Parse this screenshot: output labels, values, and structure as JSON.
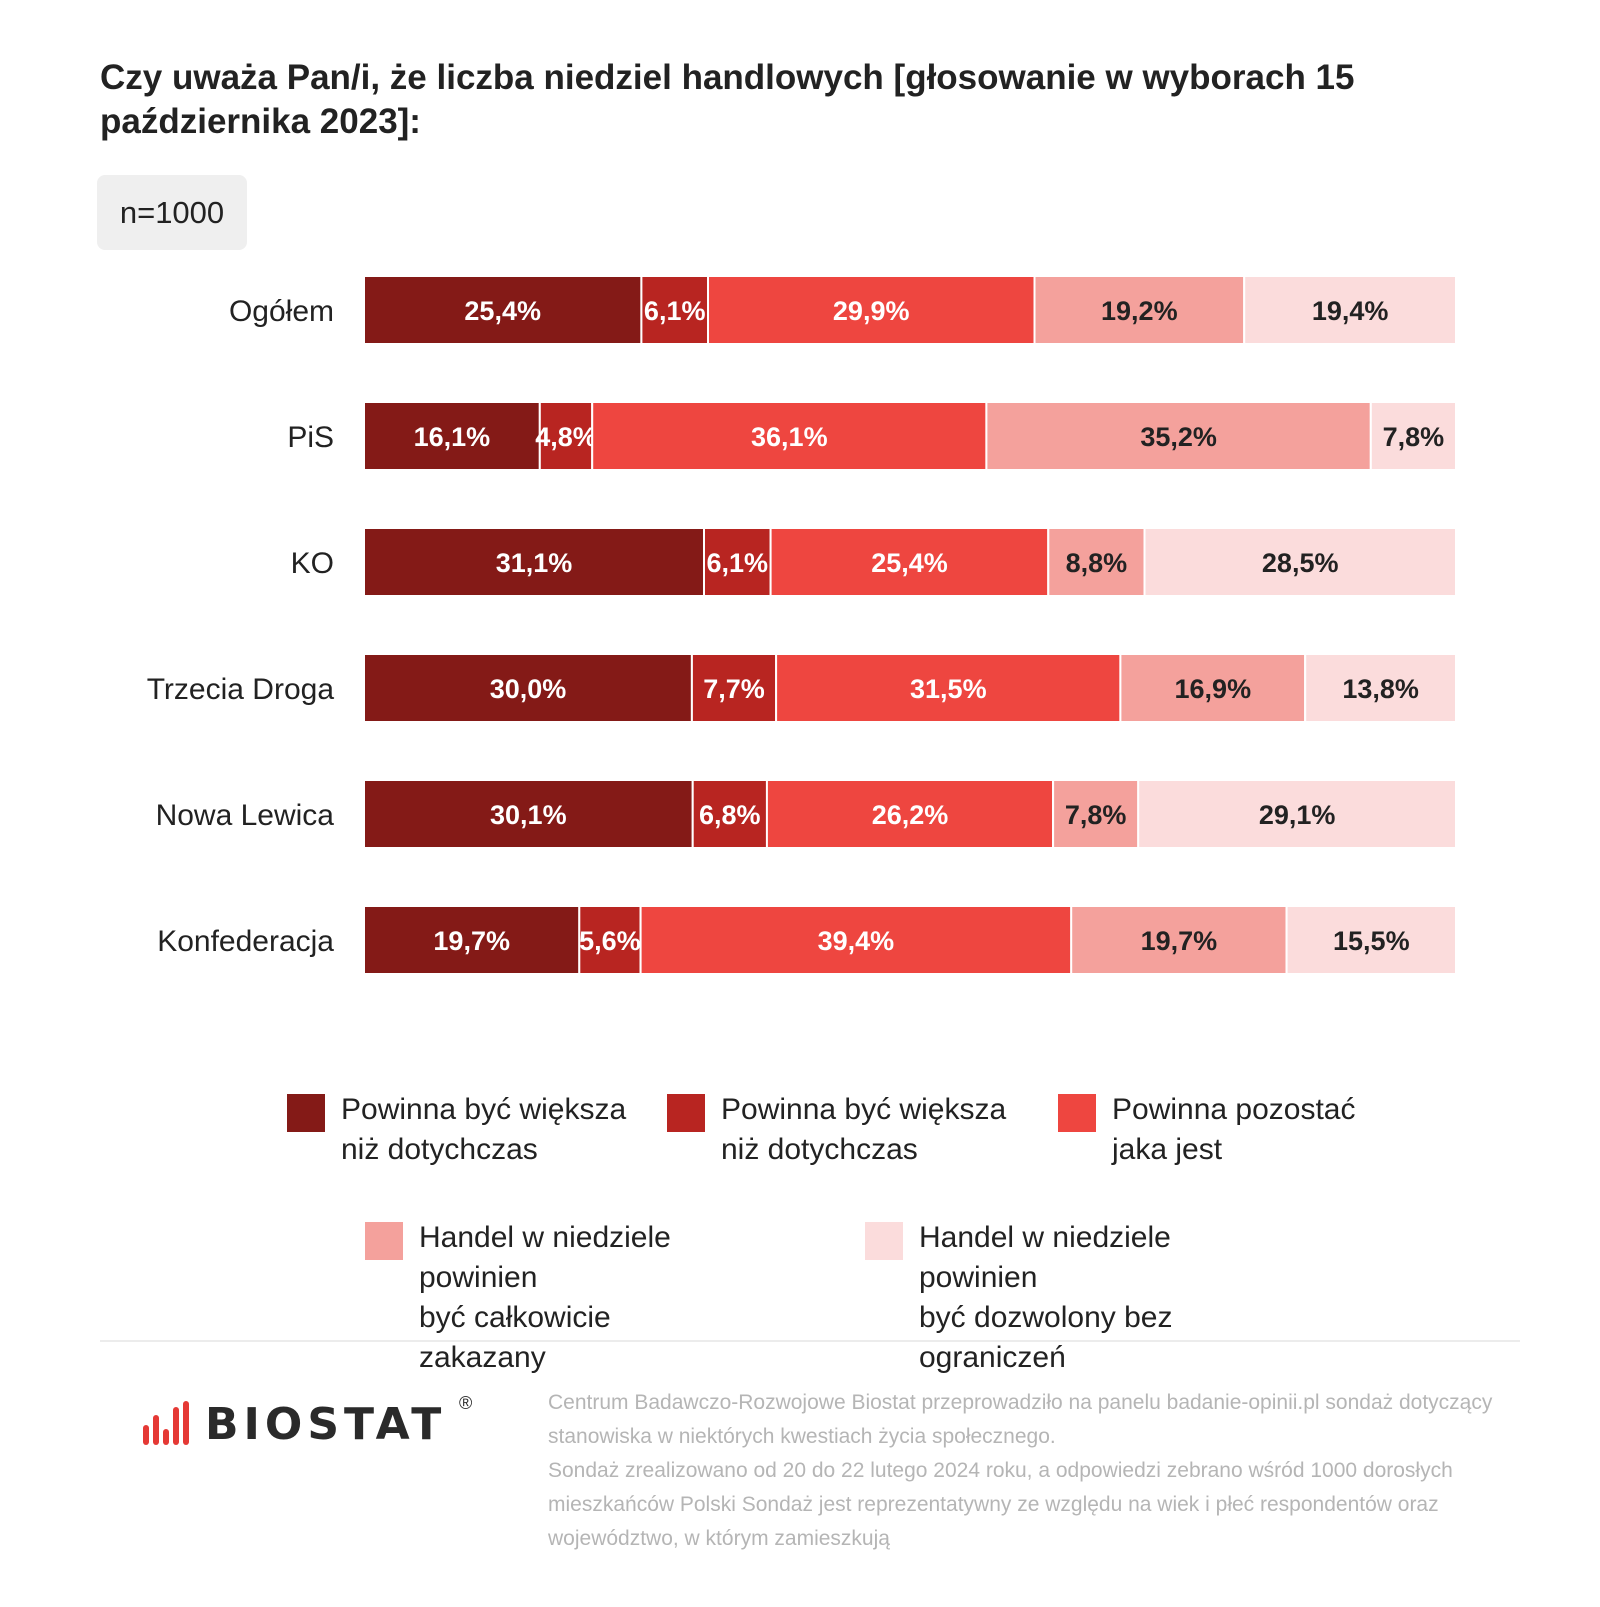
{
  "title": "Czy uważa Pan/i, że liczba niedziel handlowych [głosowanie w wyborach 15 października 2023]:",
  "sample": "n=1000",
  "colors": [
    "#841a17",
    "#b82521",
    "#ee4640",
    "#f4a19c",
    "#fbdcdc"
  ],
  "label_colors": [
    "#ffffff",
    "#ffffff",
    "#ffffff",
    "#222222",
    "#222222"
  ],
  "chart_data": {
    "type": "bar",
    "orientation": "horizontal",
    "stacked": true,
    "title": "Czy uważa Pan/i, że liczba niedziel handlowych [głosowanie w wyborach 15 października 2023]:",
    "xlim": [
      0,
      100
    ],
    "grid": false,
    "legend_position": "bottom",
    "categories": [
      "Ogółem",
      "PiS",
      "KO",
      "Trzecia Droga",
      "Nowa Lewica",
      "Konfederacja"
    ],
    "series": [
      {
        "name": "Powinna być większa niż  dotychczas",
        "values": [
          25.4,
          16.1,
          31.1,
          30.0,
          30.1,
          19.7
        ],
        "labels": [
          "25,4%",
          "16,1%",
          "31,1%",
          "30,0%",
          "30,1%",
          "19,7%"
        ]
      },
      {
        "name": "Powinna być większa niż  dotychczas",
        "values": [
          6.1,
          4.8,
          6.1,
          7.7,
          6.8,
          5.6
        ],
        "labels": [
          "6,1%",
          "4,8%",
          "6,1%",
          "7,7%",
          "6,8%",
          "5,6%"
        ]
      },
      {
        "name": "Powinna pozostać jaka jest",
        "values": [
          29.9,
          36.1,
          25.4,
          31.5,
          26.2,
          39.4
        ],
        "labels": [
          "29,9%",
          "36,1%",
          "25,4%",
          "31,5%",
          "26,2%",
          "39,4%"
        ]
      },
      {
        "name": "Handel w niedziele powinien być całkowicie zakazany",
        "values": [
          19.2,
          35.2,
          8.8,
          16.9,
          7.8,
          19.7
        ],
        "labels": [
          "19,2%",
          "35,2%",
          "8,8%",
          "16,9%",
          "7,8%",
          "19,7%"
        ]
      },
      {
        "name": "Handel w niedziele powinien być dozwolony bez ograniczeń",
        "values": [
          19.4,
          7.8,
          28.5,
          13.8,
          29.1,
          15.5
        ],
        "labels": [
          "19,4%",
          "7,8%",
          "28,5%",
          "13,8%",
          "29,1%",
          "15,5%"
        ]
      }
    ]
  },
  "legend": [
    {
      "lines": [
        "Powinna być większa",
        "niż  dotychczas"
      ]
    },
    {
      "lines": [
        "Powinna być większa",
        "niż  dotychczas"
      ]
    },
    {
      "lines": [
        "Powinna pozostać",
        "jaka jest"
      ]
    },
    {
      "lines": [
        "Handel w niedziele powinien",
        "być całkowicie zakazany"
      ]
    },
    {
      "lines": [
        "Handel w niedziele powinien",
        "być dozwolony bez ograniczeń"
      ]
    }
  ],
  "logo": {
    "text": "BIOSTAT",
    "reg": "®"
  },
  "footnote": {
    "p1": "Centrum Badawczo-Rozwojowe Biostat przeprowadziło na panelu badanie-opinii.pl sondaż dotyczący stanowiska w niektórych kwestiach życia społecznego.",
    "p2": "Sondaż zrealizowano od 20 do 22 lutego 2024 roku, a odpowiedzi zebrano wśród 1000 dorosłych mieszkańców Polski Sondaż jest reprezentatywny ze względu na wiek i płeć respondentów oraz województwo, w którym zamieszkują"
  }
}
